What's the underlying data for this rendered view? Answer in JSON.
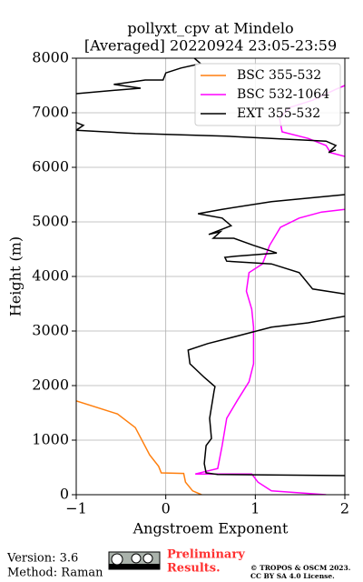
{
  "chart_data": {
    "type": "line",
    "title": "pollyxt_cpv at Mindelo",
    "subtitle": "[Averaged] 20220924 23:05-23:59",
    "x_label": "Angstroem Exponent",
    "y_label": "Height (m)",
    "xlim": [
      -1,
      2
    ],
    "xticks": [
      {
        "value": -1,
        "label": "−1"
      },
      0,
      1,
      2
    ],
    "ylim": [
      0,
      8000
    ],
    "yticks": [
      0,
      1000,
      2000,
      3000,
      4000,
      5000,
      6000,
      7000,
      8000
    ],
    "grid": true,
    "legend": "upper right",
    "series": [
      {
        "name": "BSC 355-532",
        "color": "#ff7f0e",
        "heights": [
          0,
          70,
          230,
          390,
          400,
          520,
          730,
          980,
          1230,
          1480,
          1720
        ],
        "values": [
          0.4,
          0.3,
          0.22,
          0.2,
          -0.05,
          -0.08,
          -0.18,
          -0.26,
          -0.34,
          -0.54,
          -1
        ]
      },
      {
        "name": "BSC 532-1064",
        "color": "#ff00ff",
        "heights": [
          0,
          70,
          230,
          380,
          380,
          480,
          900,
          1400,
          1730,
          2070,
          2400,
          3070,
          3400,
          3730,
          4070,
          4230,
          4570,
          4900,
          5070,
          5180,
          5230,
          null,
          6200,
          6270,
          6400,
          6530,
          6650,
          6900,
          7100,
          7230,
          7430,
          7500
        ],
        "values": [
          1.79,
          1.18,
          1.03,
          0.96,
          0.33,
          0.58,
          0.63,
          0.68,
          0.8,
          0.93,
          0.98,
          0.98,
          0.96,
          0.9,
          0.93,
          1.08,
          1.16,
          1.28,
          1.49,
          1.74,
          2,
          null,
          2,
          1.84,
          1.79,
          1.59,
          1.3,
          1.27,
          1.39,
          1.64,
          1.9,
          2
        ]
      },
      {
        "name": "EXT 355-532",
        "color": "#000000",
        "heights": [
          350,
          370,
          400,
          570,
          900,
          1030,
          1400,
          1900,
          1980,
          2150,
          2400,
          2650,
          2770,
          2900,
          3070,
          3150,
          3270,
          null,
          3680,
          3770,
          4070,
          4230,
          4280,
          4350,
          4370,
          4430,
          4570,
          4700,
          4700,
          4820,
          4770,
          4930,
          5070,
          5150,
          5230,
          5370,
          5500,
          null,
          6320,
          6270,
          6400,
          6480,
          6570,
          6620,
          6680,
          6770,
          6820,
          null,
          7350,
          7430,
          7450,
          7520,
          7600,
          7600,
          7730,
          7820,
          7900,
          8000
        ],
        "values": [
          2,
          0.58,
          0.45,
          0.43,
          0.45,
          0.51,
          0.49,
          0.54,
          0.55,
          0.43,
          0.27,
          0.25,
          0.47,
          0.78,
          1.18,
          1.59,
          2,
          null,
          2,
          1.64,
          1.49,
          1.18,
          0.68,
          0.66,
          0.78,
          1.24,
          0.98,
          0.76,
          0.53,
          0.61,
          0.48,
          0.73,
          0.63,
          0.36,
          0.63,
          1.18,
          2,
          null,
          1.9,
          1.82,
          1.9,
          1.79,
          0.68,
          -0.34,
          -1,
          -0.92,
          -1,
          null,
          -1,
          -0.44,
          -0.28,
          -0.58,
          -0.23,
          -0.03,
          0,
          0.17,
          0.39,
          0.32
        ]
      }
    ]
  },
  "footer": {
    "version": "Version: 3.6",
    "method": "Method: Raman",
    "preliminary": [
      "Preliminary",
      "Results."
    ],
    "copyright": "© TROPOS & OSCM 2023.",
    "license": "CC BY SA 4.0 License."
  }
}
